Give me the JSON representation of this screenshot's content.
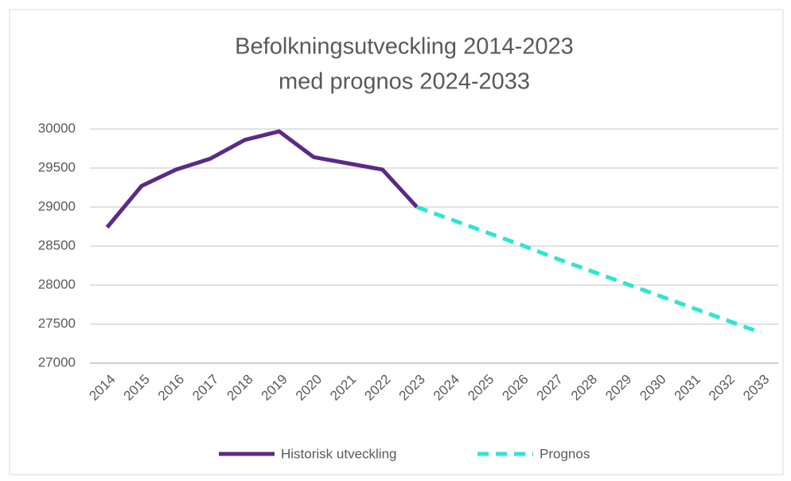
{
  "chart_data": {
    "type": "line",
    "title": [
      "Befolkningsutveckling 2014-2023",
      "med prognos 2024-2033"
    ],
    "categories": [
      "2014",
      "2015",
      "2016",
      "2017",
      "2018",
      "2019",
      "2020",
      "2021",
      "2022",
      "2023",
      "2024",
      "2025",
      "2026",
      "2027",
      "2028",
      "2029",
      "2030",
      "2031",
      "2032",
      "2033"
    ],
    "series": [
      {
        "name": "Historisk utveckling",
        "color": "#5b2a86",
        "dashed": false,
        "values": [
          28740,
          29270,
          29480,
          29620,
          29860,
          29970,
          29640,
          29560,
          29480,
          29000,
          null,
          null,
          null,
          null,
          null,
          null,
          null,
          null,
          null,
          null
        ]
      },
      {
        "name": "Prognos",
        "color": "#2ee6d0",
        "dashed": true,
        "values": [
          null,
          null,
          null,
          null,
          null,
          null,
          null,
          null,
          null,
          29000,
          28840,
          28680,
          28520,
          28350,
          28190,
          28030,
          27870,
          27710,
          27550,
          27390
        ]
      }
    ],
    "ylim": [
      27000,
      30000
    ],
    "yticks": [
      27000,
      27500,
      28000,
      28500,
      29000,
      29500,
      30000
    ],
    "grid": true,
    "legend": "bottom"
  }
}
